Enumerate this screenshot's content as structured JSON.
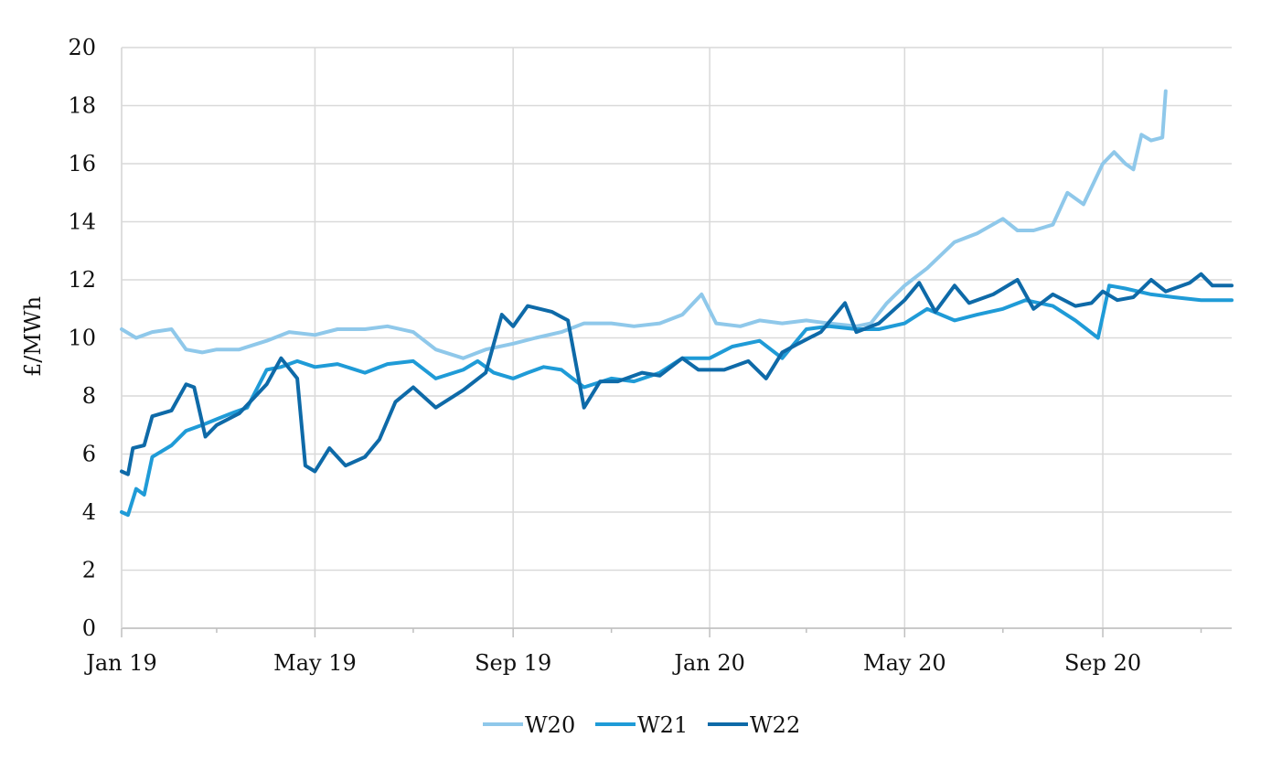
{
  "chart_data": {
    "type": "line",
    "title": "",
    "xlabel": "",
    "ylabel": "£/MWh",
    "ylim": [
      0,
      20
    ],
    "y_ticks": [
      0,
      2,
      4,
      6,
      8,
      10,
      12,
      14,
      16,
      18,
      20
    ],
    "x_range": [
      "2019-01-01",
      "2020-11-20"
    ],
    "x_ticks": [
      {
        "date": "2019-01-01",
        "label": "Jan 19"
      },
      {
        "date": "2019-05-01",
        "label": "May 19"
      },
      {
        "date": "2019-09-01",
        "label": "Sep 19"
      },
      {
        "date": "2020-01-01",
        "label": "Jan 20"
      },
      {
        "date": "2020-05-01",
        "label": "May 20"
      },
      {
        "date": "2020-09-01",
        "label": "Sep 20"
      }
    ],
    "minor_x_ticks": [
      "2019-03-01",
      "2019-07-01",
      "2019-11-01",
      "2020-03-01",
      "2020-07-01",
      "2020-11-01"
    ],
    "grid": true,
    "legend_position": "bottom",
    "series": [
      {
        "name": "W20",
        "color": "#8fc8ea",
        "points": [
          [
            "2019-01-01",
            10.3
          ],
          [
            "2019-01-10",
            10.0
          ],
          [
            "2019-01-20",
            10.2
          ],
          [
            "2019-02-01",
            10.3
          ],
          [
            "2019-02-10",
            9.6
          ],
          [
            "2019-02-20",
            9.5
          ],
          [
            "2019-03-01",
            9.6
          ],
          [
            "2019-03-15",
            9.6
          ],
          [
            "2019-04-01",
            9.9
          ],
          [
            "2019-04-15",
            10.2
          ],
          [
            "2019-05-01",
            10.1
          ],
          [
            "2019-05-15",
            10.3
          ],
          [
            "2019-06-01",
            10.3
          ],
          [
            "2019-06-15",
            10.4
          ],
          [
            "2019-07-01",
            10.2
          ],
          [
            "2019-07-15",
            9.6
          ],
          [
            "2019-08-01",
            9.3
          ],
          [
            "2019-08-15",
            9.6
          ],
          [
            "2019-09-01",
            9.8
          ],
          [
            "2019-09-15",
            10.0
          ],
          [
            "2019-10-01",
            10.2
          ],
          [
            "2019-10-15",
            10.5
          ],
          [
            "2019-11-01",
            10.5
          ],
          [
            "2019-11-15",
            10.4
          ],
          [
            "2019-12-01",
            10.5
          ],
          [
            "2019-12-15",
            10.8
          ],
          [
            "2019-12-27",
            11.5
          ],
          [
            "2020-01-05",
            10.5
          ],
          [
            "2020-01-20",
            10.4
          ],
          [
            "2020-02-01",
            10.6
          ],
          [
            "2020-02-15",
            10.5
          ],
          [
            "2020-03-01",
            10.6
          ],
          [
            "2020-03-15",
            10.5
          ],
          [
            "2020-04-01",
            10.4
          ],
          [
            "2020-04-10",
            10.5
          ],
          [
            "2020-04-20",
            11.2
          ],
          [
            "2020-05-01",
            11.8
          ],
          [
            "2020-05-15",
            12.4
          ],
          [
            "2020-06-01",
            13.3
          ],
          [
            "2020-06-15",
            13.6
          ],
          [
            "2020-07-01",
            14.1
          ],
          [
            "2020-07-10",
            13.7
          ],
          [
            "2020-07-20",
            13.7
          ],
          [
            "2020-08-01",
            13.9
          ],
          [
            "2020-08-10",
            15.0
          ],
          [
            "2020-08-20",
            14.6
          ],
          [
            "2020-09-01",
            16.0
          ],
          [
            "2020-09-08",
            16.4
          ],
          [
            "2020-09-15",
            16.0
          ],
          [
            "2020-09-20",
            15.8
          ],
          [
            "2020-09-25",
            17.0
          ],
          [
            "2020-10-01",
            16.8
          ],
          [
            "2020-10-08",
            16.9
          ],
          [
            "2020-10-10",
            18.5
          ]
        ]
      },
      {
        "name": "W21",
        "color": "#1f9bd7",
        "points": [
          [
            "2019-01-01",
            4.0
          ],
          [
            "2019-01-05",
            3.9
          ],
          [
            "2019-01-10",
            4.8
          ],
          [
            "2019-01-15",
            4.6
          ],
          [
            "2019-01-20",
            5.9
          ],
          [
            "2019-02-01",
            6.3
          ],
          [
            "2019-02-10",
            6.8
          ],
          [
            "2019-02-20",
            7.0
          ],
          [
            "2019-03-01",
            7.2
          ],
          [
            "2019-03-10",
            7.4
          ],
          [
            "2019-03-20",
            7.6
          ],
          [
            "2019-04-01",
            8.9
          ],
          [
            "2019-04-10",
            9.0
          ],
          [
            "2019-04-20",
            9.2
          ],
          [
            "2019-05-01",
            9.0
          ],
          [
            "2019-05-15",
            9.1
          ],
          [
            "2019-06-01",
            8.8
          ],
          [
            "2019-06-15",
            9.1
          ],
          [
            "2019-07-01",
            9.2
          ],
          [
            "2019-07-15",
            8.6
          ],
          [
            "2019-08-01",
            8.9
          ],
          [
            "2019-08-10",
            9.2
          ],
          [
            "2019-08-20",
            8.8
          ],
          [
            "2019-09-01",
            8.6
          ],
          [
            "2019-09-10",
            8.8
          ],
          [
            "2019-09-20",
            9.0
          ],
          [
            "2019-10-01",
            8.9
          ],
          [
            "2019-10-15",
            8.3
          ],
          [
            "2019-11-01",
            8.6
          ],
          [
            "2019-11-15",
            8.5
          ],
          [
            "2019-12-01",
            8.8
          ],
          [
            "2019-12-15",
            9.3
          ],
          [
            "2020-01-01",
            9.3
          ],
          [
            "2020-01-15",
            9.7
          ],
          [
            "2020-02-01",
            9.9
          ],
          [
            "2020-02-15",
            9.3
          ],
          [
            "2020-03-01",
            10.3
          ],
          [
            "2020-03-15",
            10.4
          ],
          [
            "2020-04-01",
            10.3
          ],
          [
            "2020-04-15",
            10.3
          ],
          [
            "2020-05-01",
            10.5
          ],
          [
            "2020-05-15",
            11.0
          ],
          [
            "2020-06-01",
            10.6
          ],
          [
            "2020-06-15",
            10.8
          ],
          [
            "2020-07-01",
            11.0
          ],
          [
            "2020-07-15",
            11.3
          ],
          [
            "2020-08-01",
            11.1
          ],
          [
            "2020-08-15",
            10.6
          ],
          [
            "2020-08-29",
            10.0
          ],
          [
            "2020-09-05",
            11.8
          ],
          [
            "2020-09-15",
            11.7
          ],
          [
            "2020-10-01",
            11.5
          ],
          [
            "2020-10-15",
            11.4
          ],
          [
            "2020-11-01",
            11.3
          ],
          [
            "2020-11-20",
            11.3
          ]
        ]
      },
      {
        "name": "W22",
        "color": "#0e6aa8",
        "points": [
          [
            "2019-01-01",
            5.4
          ],
          [
            "2019-01-05",
            5.3
          ],
          [
            "2019-01-08",
            6.2
          ],
          [
            "2019-01-15",
            6.3
          ],
          [
            "2019-01-20",
            7.3
          ],
          [
            "2019-02-01",
            7.5
          ],
          [
            "2019-02-10",
            8.4
          ],
          [
            "2019-02-15",
            8.3
          ],
          [
            "2019-02-22",
            6.6
          ],
          [
            "2019-03-01",
            7.0
          ],
          [
            "2019-03-15",
            7.4
          ],
          [
            "2019-04-01",
            8.4
          ],
          [
            "2019-04-10",
            9.3
          ],
          [
            "2019-04-20",
            8.6
          ],
          [
            "2019-04-25",
            5.6
          ],
          [
            "2019-05-01",
            5.4
          ],
          [
            "2019-05-10",
            6.2
          ],
          [
            "2019-05-20",
            5.6
          ],
          [
            "2019-06-01",
            5.9
          ],
          [
            "2019-06-10",
            6.5
          ],
          [
            "2019-06-20",
            7.8
          ],
          [
            "2019-07-01",
            8.3
          ],
          [
            "2019-07-15",
            7.6
          ],
          [
            "2019-08-01",
            8.2
          ],
          [
            "2019-08-15",
            8.8
          ],
          [
            "2019-08-25",
            10.8
          ],
          [
            "2019-09-01",
            10.4
          ],
          [
            "2019-09-10",
            11.1
          ],
          [
            "2019-09-25",
            10.9
          ],
          [
            "2019-10-05",
            10.6
          ],
          [
            "2019-10-15",
            7.6
          ],
          [
            "2019-10-25",
            8.5
          ],
          [
            "2019-11-05",
            8.5
          ],
          [
            "2019-11-20",
            8.8
          ],
          [
            "2019-12-01",
            8.7
          ],
          [
            "2019-12-15",
            9.3
          ],
          [
            "2019-12-25",
            8.9
          ],
          [
            "2020-01-10",
            8.9
          ],
          [
            "2020-01-25",
            9.2
          ],
          [
            "2020-02-05",
            8.6
          ],
          [
            "2020-02-15",
            9.5
          ],
          [
            "2020-02-25",
            9.8
          ],
          [
            "2020-03-10",
            10.2
          ],
          [
            "2020-03-25",
            11.2
          ],
          [
            "2020-04-01",
            10.2
          ],
          [
            "2020-04-15",
            10.5
          ],
          [
            "2020-05-01",
            11.3
          ],
          [
            "2020-05-10",
            11.9
          ],
          [
            "2020-05-20",
            10.9
          ],
          [
            "2020-06-01",
            11.8
          ],
          [
            "2020-06-10",
            11.2
          ],
          [
            "2020-06-25",
            11.5
          ],
          [
            "2020-07-10",
            12.0
          ],
          [
            "2020-07-20",
            11.0
          ],
          [
            "2020-08-01",
            11.5
          ],
          [
            "2020-08-15",
            11.1
          ],
          [
            "2020-08-25",
            11.2
          ],
          [
            "2020-09-01",
            11.6
          ],
          [
            "2020-09-10",
            11.3
          ],
          [
            "2020-09-20",
            11.4
          ],
          [
            "2020-10-01",
            12.0
          ],
          [
            "2020-10-10",
            11.6
          ],
          [
            "2020-10-25",
            11.9
          ],
          [
            "2020-11-01",
            12.2
          ],
          [
            "2020-11-08",
            11.8
          ],
          [
            "2020-11-20",
            11.8
          ]
        ]
      }
    ]
  }
}
